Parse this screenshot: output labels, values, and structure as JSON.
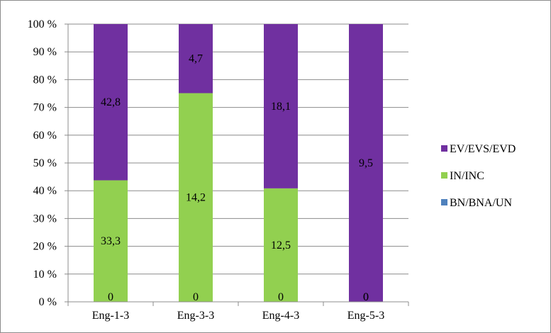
{
  "chart_data": {
    "type": "bar",
    "stacked": "percent",
    "categories": [
      "Eng-1-3",
      "Eng-3-3",
      "Eng-4-3",
      "Eng-5-3"
    ],
    "series": [
      {
        "name": "BN/BNA/UN",
        "values": [
          0,
          0,
          0,
          0
        ],
        "labels": [
          "0",
          "0",
          "0",
          "0"
        ],
        "color": "#4f81bd"
      },
      {
        "name": "IN/INC",
        "values": [
          33.3,
          14.2,
          12.5,
          0
        ],
        "labels": [
          "33,3",
          "14,2",
          "12,5",
          "0"
        ],
        "color": "#92d050"
      },
      {
        "name": "EV/EVS/EVD",
        "values": [
          42.8,
          4.7,
          18.1,
          9.5
        ],
        "labels": [
          "42,8",
          "4,7",
          "18,1",
          "9,5"
        ],
        "color": "#7030a0"
      }
    ],
    "ylim": [
      0,
      100
    ],
    "yticks": [
      "0 %",
      "10 %",
      "20 %",
      "30 %",
      "40 %",
      "50 %",
      "60 %",
      "70 %",
      "80 %",
      "90 %",
      "100 %"
    ],
    "grid": true,
    "legend_position": "right",
    "legend_order": [
      "EV/EVS/EVD",
      "IN/INC",
      "BN/BNA/UN"
    ],
    "title": "",
    "xlabel": "",
    "ylabel": ""
  }
}
